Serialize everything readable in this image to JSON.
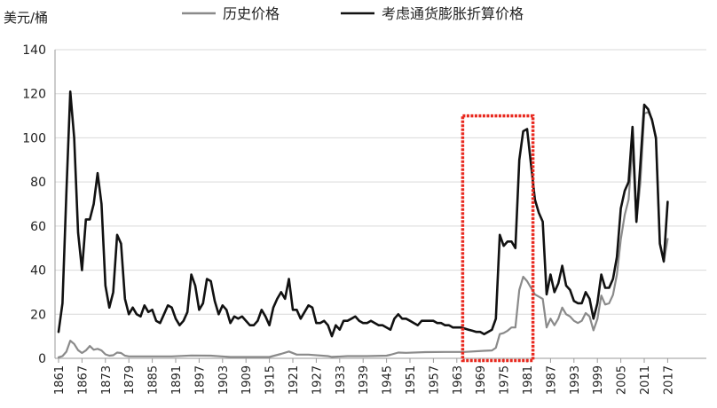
{
  "chart_data": {
    "type": "line",
    "y_unit_label": "美元/桶",
    "ylim": [
      0,
      140
    ],
    "y_ticks": [
      0,
      20,
      40,
      60,
      80,
      100,
      120,
      140
    ],
    "x_ticks": [
      "1861",
      "1867",
      "1873",
      "1879",
      "1885",
      "1891",
      "1897",
      "1903",
      "1909",
      "1915",
      "1921",
      "1927",
      "1933",
      "1939",
      "1945",
      "1951",
      "1957",
      "1963",
      "1969",
      "1975",
      "1981",
      "1987",
      "1993",
      "1999",
      "2005",
      "2011",
      "2017"
    ],
    "xlim": [
      1861,
      2018
    ],
    "grid": "horizontal",
    "legend_position": "top",
    "highlight_box": {
      "x_start": 1964.5,
      "x_end": 1982.5,
      "y_low": -1,
      "y_high": 110,
      "color": "#e8281e"
    },
    "series": [
      {
        "name": "历史价格",
        "color": "#8a8a8a",
        "points": [
          [
            1861,
            0.5
          ],
          [
            1862,
            1
          ],
          [
            1863,
            3
          ],
          [
            1864,
            8
          ],
          [
            1865,
            6.5
          ],
          [
            1866,
            3.7
          ],
          [
            1867,
            2.4
          ],
          [
            1868,
            3.6
          ],
          [
            1869,
            5.6
          ],
          [
            1870,
            3.9
          ],
          [
            1871,
            4.3
          ],
          [
            1872,
            3.6
          ],
          [
            1873,
            1.8
          ],
          [
            1874,
            1.2
          ],
          [
            1875,
            1.4
          ],
          [
            1876,
            2.6
          ],
          [
            1877,
            2.4
          ],
          [
            1878,
            1.2
          ],
          [
            1879,
            0.9
          ],
          [
            1880,
            0.9
          ],
          [
            1885,
            0.9
          ],
          [
            1890,
            0.9
          ],
          [
            1895,
            1.3
          ],
          [
            1900,
            1.2
          ],
          [
            1905,
            0.6
          ],
          [
            1910,
            0.6
          ],
          [
            1915,
            0.6
          ],
          [
            1918,
            2
          ],
          [
            1920,
            3.1
          ],
          [
            1922,
            1.7
          ],
          [
            1925,
            1.7
          ],
          [
            1930,
            1
          ],
          [
            1931,
            0.65
          ],
          [
            1935,
            1
          ],
          [
            1940,
            1
          ],
          [
            1945,
            1.2
          ],
          [
            1946,
            1.6
          ],
          [
            1948,
            2.6
          ],
          [
            1950,
            2.5
          ],
          [
            1955,
            2.8
          ],
          [
            1960,
            2.9
          ],
          [
            1965,
            2.9
          ],
          [
            1970,
            3.4
          ],
          [
            1972,
            3.6
          ],
          [
            1973,
            4.8
          ],
          [
            1974,
            11
          ],
          [
            1975,
            11.5
          ],
          [
            1976,
            12.5
          ],
          [
            1977,
            14
          ],
          [
            1978,
            14
          ],
          [
            1979,
            31
          ],
          [
            1980,
            37
          ],
          [
            1981,
            35
          ],
          [
            1982,
            32
          ],
          [
            1983,
            29
          ],
          [
            1984,
            28
          ],
          [
            1985,
            27
          ],
          [
            1986,
            14
          ],
          [
            1987,
            18
          ],
          [
            1988,
            15
          ],
          [
            1989,
            18
          ],
          [
            1990,
            23
          ],
          [
            1991,
            20
          ],
          [
            1992,
            19
          ],
          [
            1993,
            17
          ],
          [
            1994,
            16
          ],
          [
            1995,
            17
          ],
          [
            1996,
            20.5
          ],
          [
            1997,
            19
          ],
          [
            1998,
            12.7
          ],
          [
            1999,
            17.8
          ],
          [
            2000,
            28.5
          ],
          [
            2001,
            24.4
          ],
          [
            2002,
            25
          ],
          [
            2003,
            28.8
          ],
          [
            2004,
            38
          ],
          [
            2005,
            54
          ],
          [
            2006,
            65
          ],
          [
            2007,
            72
          ],
          [
            2008,
            97
          ],
          [
            2009,
            61.7
          ],
          [
            2010,
            79.5
          ],
          [
            2011,
            111
          ],
          [
            2012,
            111.7
          ],
          [
            2013,
            108.6
          ],
          [
            2014,
            99
          ],
          [
            2015,
            52.4
          ],
          [
            2016,
            43.7
          ],
          [
            2017,
            54.2
          ]
        ]
      },
      {
        "name": "考虑通货膨胀折算价格",
        "color": "#111111",
        "points": [
          [
            1861,
            12
          ],
          [
            1862,
            25
          ],
          [
            1863,
            75
          ],
          [
            1864,
            121
          ],
          [
            1865,
            100
          ],
          [
            1866,
            57
          ],
          [
            1867,
            40
          ],
          [
            1868,
            63
          ],
          [
            1869,
            63
          ],
          [
            1870,
            70
          ],
          [
            1871,
            84
          ],
          [
            1872,
            70
          ],
          [
            1873,
            33
          ],
          [
            1874,
            23
          ],
          [
            1875,
            30
          ],
          [
            1876,
            56
          ],
          [
            1877,
            52
          ],
          [
            1878,
            27
          ],
          [
            1879,
            20
          ],
          [
            1880,
            23
          ],
          [
            1881,
            20
          ],
          [
            1882,
            19
          ],
          [
            1883,
            24
          ],
          [
            1884,
            21
          ],
          [
            1885,
            22
          ],
          [
            1886,
            17
          ],
          [
            1887,
            16
          ],
          [
            1888,
            20
          ],
          [
            1889,
            24
          ],
          [
            1890,
            23
          ],
          [
            1891,
            18
          ],
          [
            1892,
            15
          ],
          [
            1893,
            17
          ],
          [
            1894,
            21
          ],
          [
            1895,
            38
          ],
          [
            1896,
            33
          ],
          [
            1897,
            22
          ],
          [
            1898,
            25
          ],
          [
            1899,
            36
          ],
          [
            1900,
            35
          ],
          [
            1901,
            26
          ],
          [
            1902,
            20
          ],
          [
            1903,
            24
          ],
          [
            1904,
            22
          ],
          [
            1905,
            16
          ],
          [
            1906,
            19
          ],
          [
            1907,
            18
          ],
          [
            1908,
            19
          ],
          [
            1909,
            17
          ],
          [
            1910,
            15
          ],
          [
            1911,
            15
          ],
          [
            1912,
            17
          ],
          [
            1913,
            22
          ],
          [
            1914,
            19
          ],
          [
            1915,
            15
          ],
          [
            1916,
            23
          ],
          [
            1917,
            27
          ],
          [
            1918,
            30
          ],
          [
            1919,
            27
          ],
          [
            1920,
            36
          ],
          [
            1921,
            22
          ],
          [
            1922,
            22
          ],
          [
            1923,
            18
          ],
          [
            1924,
            21
          ],
          [
            1925,
            24
          ],
          [
            1926,
            23
          ],
          [
            1927,
            16
          ],
          [
            1928,
            16
          ],
          [
            1929,
            17
          ],
          [
            1930,
            15
          ],
          [
            1931,
            10
          ],
          [
            1932,
            15
          ],
          [
            1933,
            13
          ],
          [
            1934,
            17
          ],
          [
            1935,
            17
          ],
          [
            1936,
            18
          ],
          [
            1937,
            19
          ],
          [
            1938,
            17
          ],
          [
            1939,
            16
          ],
          [
            1940,
            16
          ],
          [
            1941,
            17
          ],
          [
            1942,
            16
          ],
          [
            1943,
            15
          ],
          [
            1944,
            15
          ],
          [
            1945,
            14
          ],
          [
            1946,
            13
          ],
          [
            1947,
            18
          ],
          [
            1948,
            20
          ],
          [
            1949,
            18
          ],
          [
            1950,
            18
          ],
          [
            1951,
            17
          ],
          [
            1952,
            16
          ],
          [
            1953,
            15
          ],
          [
            1954,
            17
          ],
          [
            1955,
            17
          ],
          [
            1956,
            17
          ],
          [
            1957,
            17
          ],
          [
            1958,
            16
          ],
          [
            1959,
            16
          ],
          [
            1960,
            15
          ],
          [
            1961,
            15
          ],
          [
            1962,
            14
          ],
          [
            1963,
            14
          ],
          [
            1964,
            14
          ],
          [
            1965,
            13.5
          ],
          [
            1966,
            13
          ],
          [
            1967,
            12.5
          ],
          [
            1968,
            12
          ],
          [
            1969,
            12
          ],
          [
            1970,
            11
          ],
          [
            1971,
            12
          ],
          [
            1972,
            13
          ],
          [
            1973,
            18
          ],
          [
            1974,
            56
          ],
          [
            1975,
            51
          ],
          [
            1976,
            53
          ],
          [
            1977,
            53
          ],
          [
            1978,
            50
          ],
          [
            1979,
            90
          ],
          [
            1980,
            103
          ],
          [
            1981,
            104
          ],
          [
            1982,
            88
          ],
          [
            1983,
            72
          ],
          [
            1984,
            66
          ],
          [
            1985,
            62
          ],
          [
            1986,
            29
          ],
          [
            1987,
            38
          ],
          [
            1988,
            30
          ],
          [
            1989,
            34
          ],
          [
            1990,
            42
          ],
          [
            1991,
            33
          ],
          [
            1992,
            31
          ],
          [
            1993,
            26
          ],
          [
            1994,
            25
          ],
          [
            1995,
            25
          ],
          [
            1996,
            30
          ],
          [
            1997,
            27
          ],
          [
            1998,
            18
          ],
          [
            1999,
            25
          ],
          [
            2000,
            38
          ],
          [
            2001,
            32
          ],
          [
            2002,
            32
          ],
          [
            2003,
            36
          ],
          [
            2004,
            46
          ],
          [
            2005,
            68
          ],
          [
            2006,
            76
          ],
          [
            2007,
            80
          ],
          [
            2008,
            105
          ],
          [
            2009,
            62
          ],
          [
            2010,
            88
          ],
          [
            2011,
            115
          ],
          [
            2012,
            113
          ],
          [
            2013,
            108
          ],
          [
            2014,
            100
          ],
          [
            2015,
            52
          ],
          [
            2016,
            44
          ],
          [
            2017,
            71
          ]
        ]
      }
    ]
  }
}
